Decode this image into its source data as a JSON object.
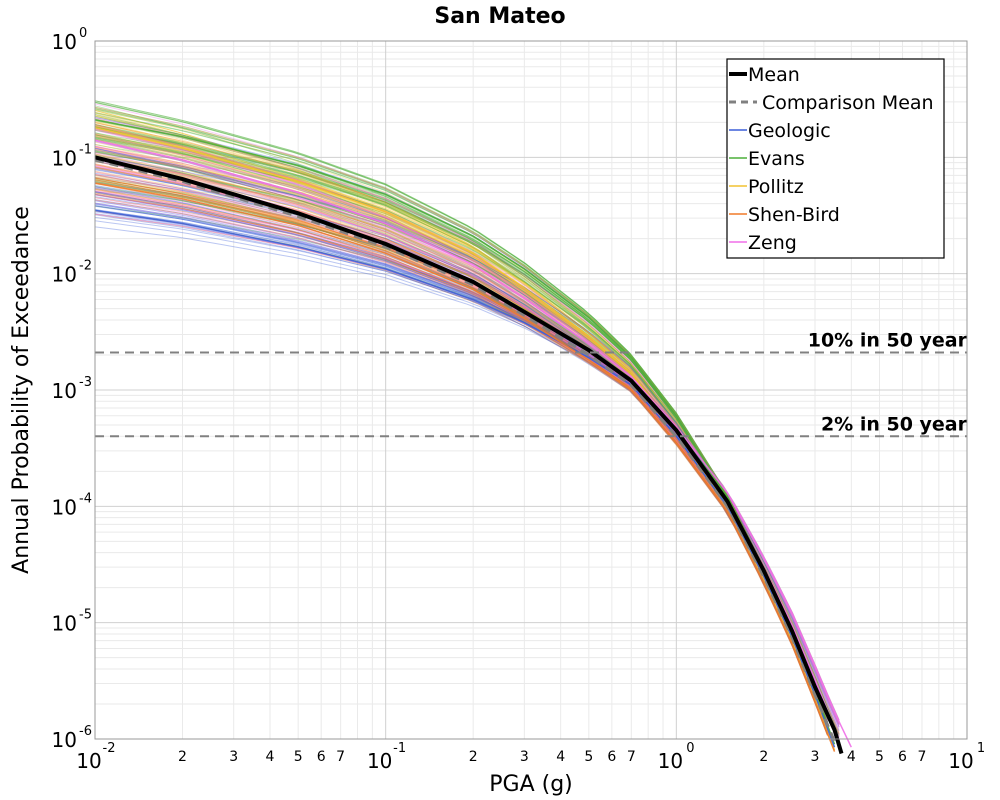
{
  "chart_data": {
    "type": "line",
    "title": "San Mateo",
    "xlabel": "PGA (g)",
    "ylabel": "Annual Probability of Exceedance",
    "x_scale": "log",
    "y_scale": "log",
    "xlim": [
      0.01,
      10
    ],
    "ylim": [
      1e-06,
      1
    ],
    "grid": true,
    "x_major_ticks": [
      {
        "base": "10",
        "exp": "-2"
      },
      {
        "base": "10",
        "exp": "-1"
      },
      {
        "base": "10",
        "exp": "0"
      },
      {
        "base": "10",
        "exp": "1"
      }
    ],
    "y_major_ticks": [
      {
        "base": "10",
        "exp": "0"
      },
      {
        "base": "10",
        "exp": "-1"
      },
      {
        "base": "10",
        "exp": "-2"
      },
      {
        "base": "10",
        "exp": "-3"
      },
      {
        "base": "10",
        "exp": "-4"
      },
      {
        "base": "10",
        "exp": "-5"
      },
      {
        "base": "10",
        "exp": "-6"
      }
    ],
    "x_minor_tick_labels": [
      "2",
      "3",
      "4",
      "5",
      "6",
      "7"
    ],
    "reference_lines": [
      {
        "label": "10% in 50 year",
        "y": 0.0021
      },
      {
        "label": "2% in 50 year",
        "y": 0.0004
      }
    ],
    "legend": {
      "placement": "top-right",
      "entries": [
        {
          "label": "Mean",
          "color": "#000000",
          "style": "solid-thick"
        },
        {
          "label": "Comparison Mean",
          "color": "#808080",
          "style": "dashed"
        },
        {
          "label": "Geologic",
          "color": "#3b5fd9",
          "style": "solid"
        },
        {
          "label": "Evans",
          "color": "#4caf3a",
          "style": "solid"
        },
        {
          "label": "Pollitz",
          "color": "#f2c230",
          "style": "solid"
        },
        {
          "label": "Shen-Bird",
          "color": "#f07a28",
          "style": "solid"
        },
        {
          "label": "Zeng",
          "color": "#f06ee8",
          "style": "solid"
        }
      ]
    },
    "series": [
      {
        "name": "Mean",
        "color": "#000000",
        "x": [
          0.01,
          0.02,
          0.05,
          0.1,
          0.2,
          0.3,
          0.5,
          0.7,
          1.0,
          1.5,
          2.0,
          2.5,
          3.0,
          3.5,
          3.7
        ],
        "y": [
          0.1,
          0.065,
          0.033,
          0.018,
          0.0085,
          0.0047,
          0.0022,
          0.0012,
          0.00045,
          0.00011,
          2.8e-05,
          8.5e-06,
          2.8e-06,
          1.2e-06,
          7.5e-07
        ]
      },
      {
        "name": "Comparison Mean",
        "color": "#808080",
        "x": [
          0.01,
          0.02,
          0.05,
          0.1,
          0.2,
          0.3,
          0.5,
          0.7,
          1.0,
          1.5,
          2.0,
          2.5,
          3.0,
          3.5
        ],
        "y": [
          0.095,
          0.062,
          0.031,
          0.017,
          0.008,
          0.0044,
          0.002,
          0.0011,
          0.0004,
          0.0001,
          2.5e-05,
          7.5e-06,
          2.4e-06,
          9.5e-07
        ]
      },
      {
        "name": "Evans",
        "color": "#4caf3a",
        "x": [
          0.01,
          0.02,
          0.05,
          0.1,
          0.2,
          0.3,
          0.5,
          0.7,
          1.0,
          1.5,
          2.0,
          2.5,
          3.0,
          3.5
        ],
        "y": [
          0.21,
          0.15,
          0.085,
          0.048,
          0.021,
          0.011,
          0.0042,
          0.0019,
          0.0006,
          0.00012,
          2.8e-05,
          8.2e-06,
          2.6e-06,
          9e-07
        ]
      },
      {
        "name": "Pollitz",
        "color": "#f2c230",
        "x": [
          0.01,
          0.02,
          0.05,
          0.1,
          0.2,
          0.3,
          0.5,
          0.7,
          1.0,
          1.5,
          2.0,
          2.5,
          3.0,
          3.5
        ],
        "y": [
          0.18,
          0.12,
          0.062,
          0.034,
          0.015,
          0.0075,
          0.0029,
          0.0014,
          0.00045,
          0.0001,
          2.4e-05,
          7.2e-06,
          2.3e-06,
          8e-07
        ]
      },
      {
        "name": "Geologic",
        "color": "#3b5fd9",
        "x": [
          0.01,
          0.02,
          0.05,
          0.1,
          0.2,
          0.3,
          0.5,
          0.7,
          1.0,
          1.5,
          2.0,
          2.5,
          3.0,
          3.5
        ],
        "y": [
          0.035,
          0.027,
          0.017,
          0.011,
          0.006,
          0.0038,
          0.0019,
          0.0011,
          0.0004,
          0.0001,
          2.5e-05,
          7.5e-06,
          2.4e-06,
          8.5e-07
        ]
      },
      {
        "name": "Shen-Bird",
        "color": "#f07a28",
        "x": [
          0.01,
          0.02,
          0.05,
          0.1,
          0.2,
          0.3,
          0.5,
          0.7,
          1.0,
          1.5,
          2.0,
          2.5,
          3.0,
          3.5
        ],
        "y": [
          0.06,
          0.044,
          0.026,
          0.015,
          0.0073,
          0.0041,
          0.0018,
          0.001,
          0.00035,
          9e-05,
          2.2e-05,
          6.6e-06,
          2.1e-06,
          7.8e-07
        ]
      },
      {
        "name": "Zeng",
        "color": "#f06ee8",
        "x": [
          0.01,
          0.02,
          0.05,
          0.1,
          0.2,
          0.3,
          0.5,
          0.7,
          1.0,
          1.5,
          2.0,
          2.5,
          3.0,
          3.5,
          4.0
        ],
        "y": [
          0.14,
          0.095,
          0.05,
          0.027,
          0.012,
          0.0062,
          0.0025,
          0.0013,
          0.00048,
          0.00013,
          3.6e-05,
          1.2e-05,
          4.2e-06,
          1.7e-06,
          8.5e-07
        ]
      }
    ]
  }
}
